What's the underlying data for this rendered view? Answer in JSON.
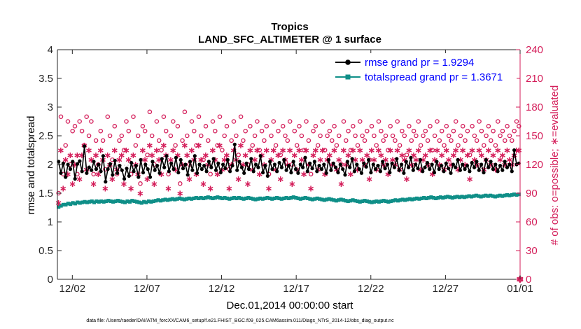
{
  "chart_data": {
    "type": "line",
    "title_line1": "Tropics",
    "title_line2": "LAND_SFC_ALTIMETER @ 1 surface",
    "xlabel": "Dec.01,2014 00:00:00 start",
    "ylabel_left": "rmse and totalspread",
    "ylabel_right": "# of obs: o=possible; ∗=evaluated",
    "x_ticks": [
      "12/02",
      "12/07",
      "12/12",
      "12/17",
      "12/22",
      "12/27",
      "01/01"
    ],
    "x_tick_days": [
      1,
      6,
      11,
      16,
      21,
      26,
      31
    ],
    "xlim_days": [
      0,
      31
    ],
    "ylim_left": [
      0,
      4
    ],
    "y_ticks_left": [
      "0",
      "0.5",
      "1",
      "1.5",
      "2",
      "2.5",
      "3",
      "3.5",
      "4"
    ],
    "ylim_right": [
      0,
      240
    ],
    "y_ticks_right": [
      "0",
      "30",
      "60",
      "90",
      "120",
      "150",
      "180",
      "210",
      "240"
    ],
    "footnote": "data file: /Users/raeder/DAI/ATM_forcXX/CAM6_setup/f.e21.FHIST_BGC.f09_025.CAM6assim.011/Diags_NTrS_2014-12/obs_diag_output.nc",
    "colors": {
      "rmse": "#000000",
      "spread": "#0f8f88",
      "obs": "#d41e5a",
      "legend_text": "#0000ff"
    },
    "series": [
      {
        "name": "rmse grand pr = 1.9294",
        "marker": "filled-circle",
        "values": [
          2.05,
          1.85,
          2.02,
          1.78,
          2.0,
          1.92,
          2.05,
          1.75,
          2.01,
          2.06,
          1.88,
          2.32,
          1.85,
          1.95,
          1.9,
          2.05,
          1.92,
          2.0,
          1.88,
          2.15,
          1.7,
          1.92,
          2.01,
          1.82,
          2.07,
          1.85,
          1.98,
          1.9,
          1.75,
          1.93,
          1.8,
          2.03,
          1.88,
          1.98,
          1.78,
          2.08,
          1.86,
          2.0,
          1.92,
          1.78,
          2.05,
          1.9,
          1.98,
          1.85,
          2.1,
          1.95,
          2.15,
          1.88,
          2.02,
          1.92,
          2.12,
          1.86,
          2.08,
          1.93,
          2.0,
          1.82,
          2.05,
          1.9,
          2.15,
          1.85,
          2.0,
          1.92,
          1.98,
          1.88,
          2.05,
          1.95,
          2.1,
          1.9,
          2.02,
          1.86,
          2.0,
          1.93,
          2.08,
          1.88,
          1.98,
          2.35,
          1.9,
          2.05,
          1.95,
          1.85,
          2.02,
          1.92,
          2.1,
          1.88,
          2.0,
          1.95,
          2.15,
          1.86,
          1.98,
          1.8,
          2.05,
          1.92,
          2.0,
          1.88,
          2.03,
          1.95,
          2.08,
          1.9,
          1.98,
          1.86,
          2.05,
          1.92,
          1.85,
          2.0,
          1.95,
          2.12,
          1.88,
          2.02,
          1.93,
          2.05,
          1.88,
          1.98,
          1.92,
          2.0,
          1.85,
          2.08,
          1.9,
          2.02,
          1.95,
          1.86,
          2.0,
          1.92,
          1.82,
          2.05,
          1.95,
          2.1,
          1.88,
          2.0,
          1.92,
          1.85,
          2.02,
          1.96,
          2.08,
          1.86,
          2.0,
          1.92,
          1.98,
          1.88,
          2.05,
          1.93,
          2.0,
          1.86,
          2.02,
          1.95,
          2.1,
          1.9,
          2.0,
          1.85,
          2.05,
          1.95,
          2.12,
          1.9,
          2.0,
          1.93,
          2.08,
          1.88,
          1.95,
          2.03,
          1.92,
          2.0,
          1.86,
          2.05,
          1.92,
          1.98,
          1.88,
          2.02,
          1.93,
          1.85,
          2.0,
          1.95,
          2.08,
          1.9,
          2.0,
          1.92,
          1.98,
          1.88,
          2.03,
          1.95,
          2.05,
          1.9,
          2.0,
          1.86,
          2.08,
          1.95,
          2.05,
          1.92,
          2.0,
          1.88,
          1.98,
          1.9,
          2.05,
          1.95,
          2.0,
          1.88,
          2.25,
          2.0,
          2.02
        ]
      },
      {
        "name": "totalspread grand pr = 1.3671",
        "marker": "filled-square",
        "values": [
          1.26,
          1.28,
          1.3,
          1.3,
          1.32,
          1.31,
          1.33,
          1.32,
          1.34,
          1.33,
          1.34,
          1.35,
          1.34,
          1.35,
          1.36,
          1.34,
          1.36,
          1.35,
          1.36,
          1.35,
          1.36,
          1.37,
          1.36,
          1.35,
          1.36,
          1.37,
          1.36,
          1.35,
          1.34,
          1.36,
          1.35,
          1.37,
          1.36,
          1.35,
          1.34,
          1.33,
          1.35,
          1.34,
          1.36,
          1.35,
          1.36,
          1.37,
          1.38,
          1.37,
          1.38,
          1.39,
          1.38,
          1.39,
          1.4,
          1.39,
          1.4,
          1.41,
          1.4,
          1.39,
          1.4,
          1.41,
          1.4,
          1.41,
          1.42,
          1.41,
          1.42,
          1.41,
          1.42,
          1.43,
          1.42,
          1.41,
          1.42,
          1.43,
          1.42,
          1.41,
          1.42,
          1.41,
          1.4,
          1.41,
          1.42,
          1.41,
          1.42,
          1.41,
          1.4,
          1.41,
          1.42,
          1.41,
          1.4,
          1.39,
          1.4,
          1.41,
          1.4,
          1.41,
          1.42,
          1.41,
          1.4,
          1.41,
          1.42,
          1.41,
          1.4,
          1.41,
          1.42,
          1.41,
          1.42,
          1.43,
          1.42,
          1.41,
          1.4,
          1.41,
          1.42,
          1.41,
          1.4,
          1.39,
          1.4,
          1.41,
          1.4,
          1.39,
          1.38,
          1.39,
          1.4,
          1.39,
          1.38,
          1.37,
          1.38,
          1.39,
          1.38,
          1.37,
          1.36,
          1.37,
          1.38,
          1.37,
          1.36,
          1.35,
          1.36,
          1.37,
          1.36,
          1.35,
          1.34,
          1.35,
          1.36,
          1.35,
          1.36,
          1.37,
          1.36,
          1.35,
          1.36,
          1.37,
          1.38,
          1.37,
          1.38,
          1.39,
          1.38,
          1.39,
          1.4,
          1.39,
          1.4,
          1.41,
          1.4,
          1.41,
          1.42,
          1.41,
          1.42,
          1.43,
          1.42,
          1.41,
          1.42,
          1.43,
          1.42,
          1.43,
          1.44,
          1.43,
          1.42,
          1.43,
          1.44,
          1.43,
          1.44,
          1.43,
          1.44,
          1.45,
          1.44,
          1.45,
          1.46,
          1.45,
          1.44,
          1.45,
          1.46,
          1.45,
          1.46,
          1.45,
          1.44,
          1.45,
          1.46,
          1.45,
          1.46,
          1.47,
          1.46,
          1.47,
          1.48,
          1.47,
          1.48
        ]
      },
      {
        "name": "obs possible",
        "marker": "open-circle",
        "axis": "right",
        "values": [
          90,
          170,
          110,
          140,
          165,
          120,
          155,
          160,
          110,
          165,
          155,
          140,
          170,
          150,
          165,
          110,
          145,
          120,
          155,
          145,
          115,
          170,
          150,
          125,
          160,
          110,
          145,
          150,
          135,
          165,
          155,
          110,
          170,
          140,
          150,
          100,
          160,
          155,
          130,
          175,
          150,
          120,
          165,
          145,
          135,
          170,
          155,
          110,
          150,
          165,
          140,
          160,
          100,
          145,
          175,
          150,
          120,
          165,
          155,
          140,
          170,
          150,
          125,
          160,
          145,
          110,
          165,
          155,
          140,
          170,
          135,
          150,
          160,
          115,
          145,
          165,
          150,
          130,
          170,
          145,
          155,
          120,
          160,
          140,
          150,
          165,
          135,
          155,
          145,
          160,
          110,
          150,
          165,
          140,
          155,
          130,
          160,
          150,
          145,
          165,
          120,
          155,
          140,
          160,
          150,
          135,
          165,
          145,
          110,
          155,
          160,
          140,
          150,
          165,
          135,
          150,
          155,
          145,
          160,
          140,
          150,
          120,
          165,
          145,
          155,
          135,
          160,
          150,
          140,
          165,
          150,
          145,
          155,
          125,
          160,
          150,
          140,
          165,
          155,
          145,
          150,
          135,
          160,
          150,
          145,
          165,
          140,
          155,
          150,
          130,
          160,
          145,
          155,
          150,
          165,
          140,
          150,
          155,
          145,
          160,
          135,
          150,
          165,
          145,
          155,
          140,
          160,
          150,
          145,
          155,
          165,
          140,
          150,
          160,
          145,
          155,
          130,
          160,
          150,
          145,
          165,
          155,
          140,
          150,
          160,
          145,
          155,
          140,
          165,
          150,
          155,
          145,
          160,
          150,
          145,
          155,
          165,
          160
        ]
      },
      {
        "name": "obs evaluated",
        "marker": "star",
        "axis": "right",
        "values": [
          80,
          135,
          95,
          125,
          110,
          130,
          100,
          120,
          130,
          105,
          130,
          140,
          115,
          135,
          125,
          100,
          130,
          110,
          135,
          125,
          95,
          130,
          120,
          105,
          135,
          115,
          125,
          130,
          100,
          135,
          125,
          95,
          130,
          120,
          110,
          90,
          135,
          125,
          105,
          140,
          130,
          100,
          135,
          125,
          110,
          140,
          130,
          95,
          125,
          135,
          115,
          130,
          90,
          120,
          140,
          130,
          105,
          135,
          125,
          110,
          140,
          125,
          100,
          130,
          120,
          95,
          135,
          125,
          110,
          140,
          115,
          125,
          130,
          95,
          120,
          135,
          125,
          105,
          140,
          120,
          130,
          100,
          135,
          115,
          125,
          135,
          110,
          130,
          120,
          135,
          95,
          125,
          135,
          115,
          130,
          105,
          135,
          125,
          120,
          135,
          100,
          130,
          115,
          135,
          125,
          110,
          135,
          120,
          95,
          130,
          135,
          115,
          125,
          135,
          110,
          125,
          130,
          120,
          135,
          115,
          125,
          100,
          135,
          120,
          130,
          110,
          135,
          125,
          115,
          135,
          125,
          120,
          130,
          105,
          135,
          125,
          115,
          135,
          130,
          120,
          125,
          110,
          135,
          125,
          120,
          135,
          115,
          130,
          125,
          105,
          135,
          120,
          130,
          125,
          135,
          115,
          125,
          130,
          120,
          135,
          110,
          125,
          135,
          120,
          130,
          115,
          135,
          125,
          120,
          130,
          135,
          115,
          125,
          135,
          120,
          130,
          105,
          135,
          125,
          120,
          135,
          130,
          115,
          125,
          135,
          120,
          130,
          115,
          135,
          125,
          130,
          120,
          135,
          125,
          120,
          130,
          135,
          135
        ]
      }
    ]
  }
}
